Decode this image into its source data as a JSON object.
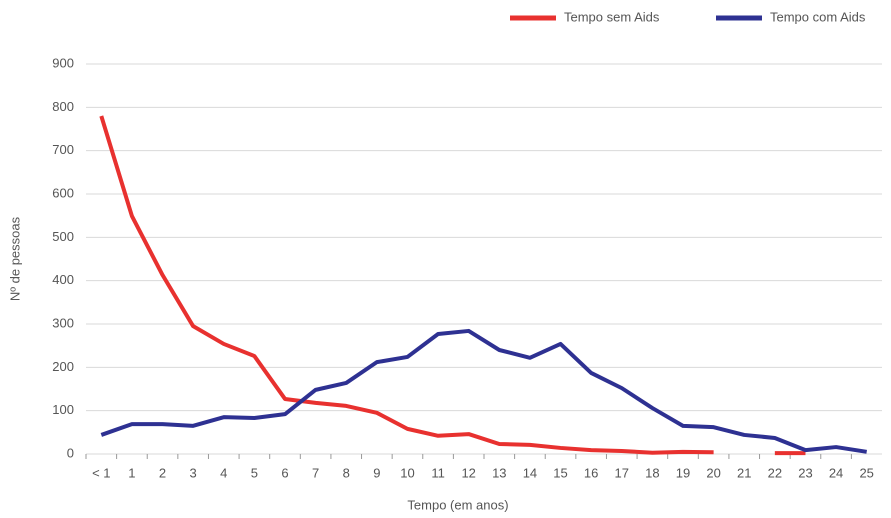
{
  "chart_data": {
    "type": "line",
    "x_label": "Tempo (em anos)",
    "y_label": "Nº de pessoas",
    "categories": [
      "< 1",
      "1",
      "2",
      "3",
      "4",
      "5",
      "6",
      "7",
      "8",
      "9",
      "10",
      "11",
      "12",
      "13",
      "14",
      "15",
      "16",
      "17",
      "18",
      "19",
      "20",
      "21",
      "22",
      "23",
      "24",
      "25"
    ],
    "series": [
      {
        "name": "Tempo sem Aids",
        "color": "#e8312f",
        "values": [
          780,
          549,
          413,
          295,
          254,
          226,
          127,
          118,
          111,
          95,
          58,
          42,
          46,
          23,
          21,
          14,
          9,
          7,
          3,
          5,
          4,
          null,
          2,
          2,
          null,
          null
        ]
      },
      {
        "name": "Tempo com Aids",
        "color": "#2e3192",
        "values": [
          44,
          69,
          69,
          65,
          85,
          83,
          92,
          148,
          164,
          212,
          224,
          277,
          284,
          240,
          222,
          254,
          187,
          152,
          106,
          65,
          62,
          44,
          37,
          9,
          16,
          5
        ]
      }
    ],
    "ylim": [
      0,
      900
    ],
    "yticks": [
      0,
      100,
      200,
      300,
      400,
      500,
      600,
      700,
      800,
      900
    ],
    "grid": true,
    "legend": "top-right"
  }
}
